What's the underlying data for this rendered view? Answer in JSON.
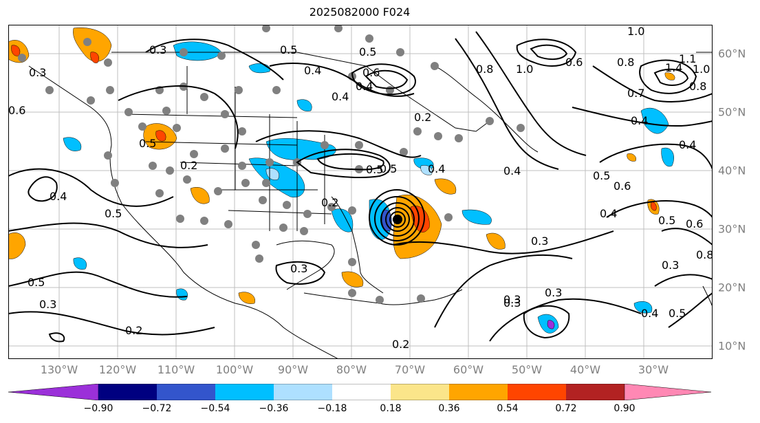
{
  "title": "2025082000 F024",
  "map": {
    "lon_labels": [
      "130°W",
      "120°W",
      "110°W",
      "100°W",
      "90°W",
      "80°W",
      "70°W",
      "60°W",
      "50°W",
      "40°W",
      "30°W"
    ],
    "lat_labels": [
      "60°N",
      "50°N",
      "40°N",
      "30°N",
      "20°N",
      "10°N"
    ],
    "contour_labels": [
      "0.3",
      "0.3",
      "0.4",
      "0.5",
      "0.5",
      "0.6",
      "0.4",
      "0.5",
      "0.5",
      "0.5",
      "0.3",
      "0.2",
      "0.6",
      "0.2",
      "0.2",
      "0.3",
      "0.4",
      "0.2",
      "0.5",
      "0.4",
      "0.3",
      "0.3",
      "0.3",
      "0.4",
      "0.5",
      "0.2",
      "1.0",
      "1.0",
      "0.8",
      "0.8",
      "0.7",
      "0.6",
      "0.4",
      "0.4",
      "0.5",
      "0.6",
      "0.4",
      "0.5",
      "0.6",
      "0.8",
      "0.3",
      "0.3",
      "0.4",
      "0.4",
      "0.5",
      "1.1",
      "1.0",
      "1.4",
      "0.8"
    ],
    "colors": {
      "coast": "#000000",
      "grid": "#bfbfbf",
      "contour": "#000000",
      "station": "#808080"
    }
  },
  "colorbar": {
    "ticks": [
      "−0.90",
      "−0.72",
      "−0.54",
      "−0.36",
      "−0.18",
      "0.18",
      "0.36",
      "0.54",
      "0.72",
      "0.90"
    ],
    "colors": [
      "#9b30d9",
      "#000080",
      "#3355cc",
      "#00bfff",
      "#aee0ff",
      "#ffffff",
      "#fbe58a",
      "#ffa500",
      "#ff4500",
      "#b22222",
      "#ff88b4"
    ]
  }
}
